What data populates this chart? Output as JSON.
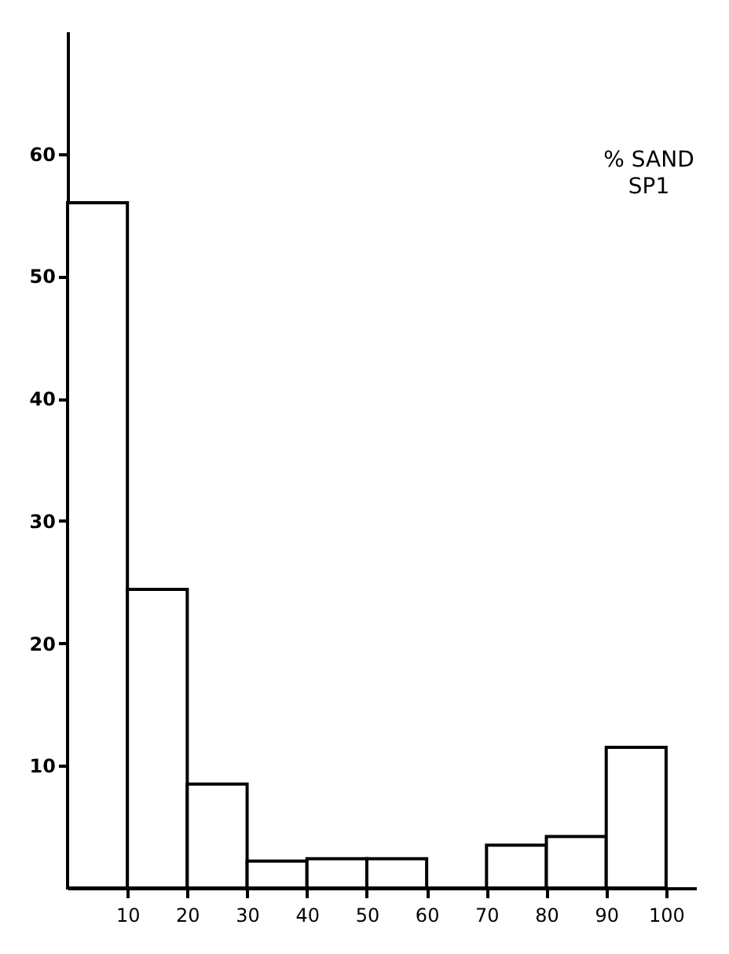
{
  "chart_data": {
    "type": "histogram",
    "annotations": [
      "% SAND",
      "SP1"
    ],
    "bins": [
      0,
      10,
      20,
      30,
      40,
      50,
      60,
      70,
      80,
      90,
      100
    ],
    "values": [
      56,
      24.4,
      8.5,
      2.2,
      2.4,
      2.4,
      0,
      3.5,
      4.2,
      11.5
    ],
    "color": "#ffffff",
    "xlim": [
      0,
      105
    ],
    "xticks": [
      10,
      20,
      30,
      40,
      50,
      60,
      70,
      80,
      90,
      100
    ],
    "ylim": [
      0,
      70
    ],
    "yticks": [
      10,
      20,
      30,
      40,
      50,
      60
    ],
    "grid": false
  }
}
